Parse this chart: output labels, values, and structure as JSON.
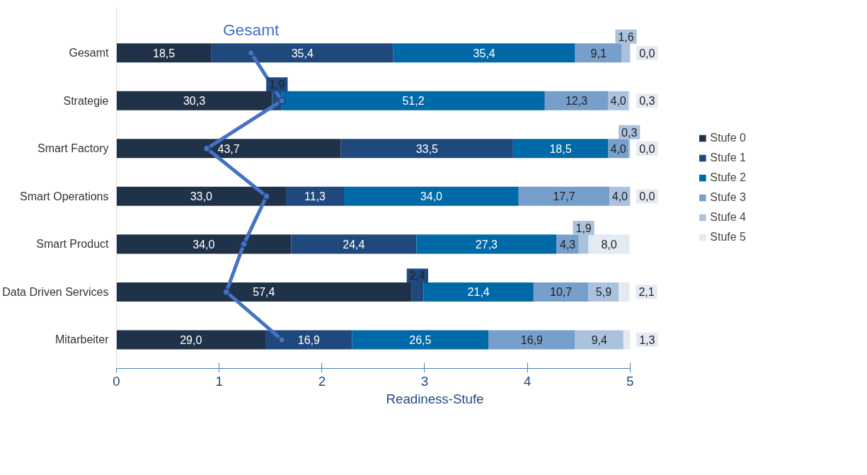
{
  "chart_data": {
    "type": "bar",
    "orientation": "horizontal",
    "stacked": true,
    "legend": "right",
    "grid": false,
    "categories": [
      "Gesamt",
      "Strategie",
      "Smart Factory",
      "Smart Operations",
      "Smart Product",
      "Data Driven Services",
      "Mitarbeiter"
    ],
    "xlim": [
      0,
      100
    ],
    "x2lim": [
      0,
      5
    ],
    "x2ticks": [
      0,
      1,
      2,
      3,
      4,
      5
    ],
    "x2label": "Readiness-Stufe",
    "series": [
      {
        "name": "Stufe 0",
        "color": "#203249",
        "values": [
          18.5,
          30.3,
          43.7,
          33.0,
          34.0,
          57.4,
          29.0
        ],
        "value_labels": [
          "18,5",
          "30,3",
          "43,7",
          "33,0",
          "34,0",
          "57,4",
          "29,0"
        ]
      },
      {
        "name": "Stufe 1",
        "color": "#1f497d",
        "values": [
          35.4,
          1.9,
          33.5,
          11.3,
          24.4,
          2.4,
          16.9
        ],
        "value_labels": [
          "35,4",
          "1,9",
          "33,5",
          "11,3",
          "24,4",
          "2,4",
          "16,9"
        ]
      },
      {
        "name": "Stufe 2",
        "color": "#0069a8",
        "values": [
          35.4,
          51.2,
          18.5,
          34.0,
          27.3,
          21.4,
          26.5
        ],
        "value_labels": [
          "35,4",
          "51,2",
          "18,5",
          "34,0",
          "27,3",
          "21,4",
          "26,5"
        ]
      },
      {
        "name": "Stufe 3",
        "color": "#779fcc",
        "values": [
          9.1,
          12.3,
          4.0,
          17.7,
          4.3,
          10.7,
          16.9
        ],
        "value_labels": [
          "9,1",
          "12,3",
          "4,0",
          "17,7",
          "4,3",
          "10,7",
          "16,9"
        ]
      },
      {
        "name": "Stufe 4",
        "color": "#abc2de",
        "values": [
          1.6,
          4.0,
          0.3,
          4.0,
          1.9,
          5.9,
          9.4
        ],
        "value_labels": [
          "1,6",
          "4,0",
          "0,3",
          "4,0",
          "1,9",
          "5,9",
          "9,4"
        ]
      },
      {
        "name": "Stufe 5",
        "color": "#e3eaf3",
        "values": [
          0.0,
          0.3,
          0.0,
          0.0,
          8.0,
          2.1,
          1.3
        ],
        "value_labels": [
          "0,0",
          "0,3",
          "0,0",
          "0,0",
          "8,0",
          "2,1",
          "1,3"
        ]
      },
      {
        "name": "Gesamt",
        "type": "line",
        "axis": "x2",
        "color": "#4472c4",
        "marker": "circle",
        "values": [
          1.31,
          1.61,
          0.88,
          1.46,
          1.24,
          1.07,
          1.61
        ]
      }
    ]
  }
}
